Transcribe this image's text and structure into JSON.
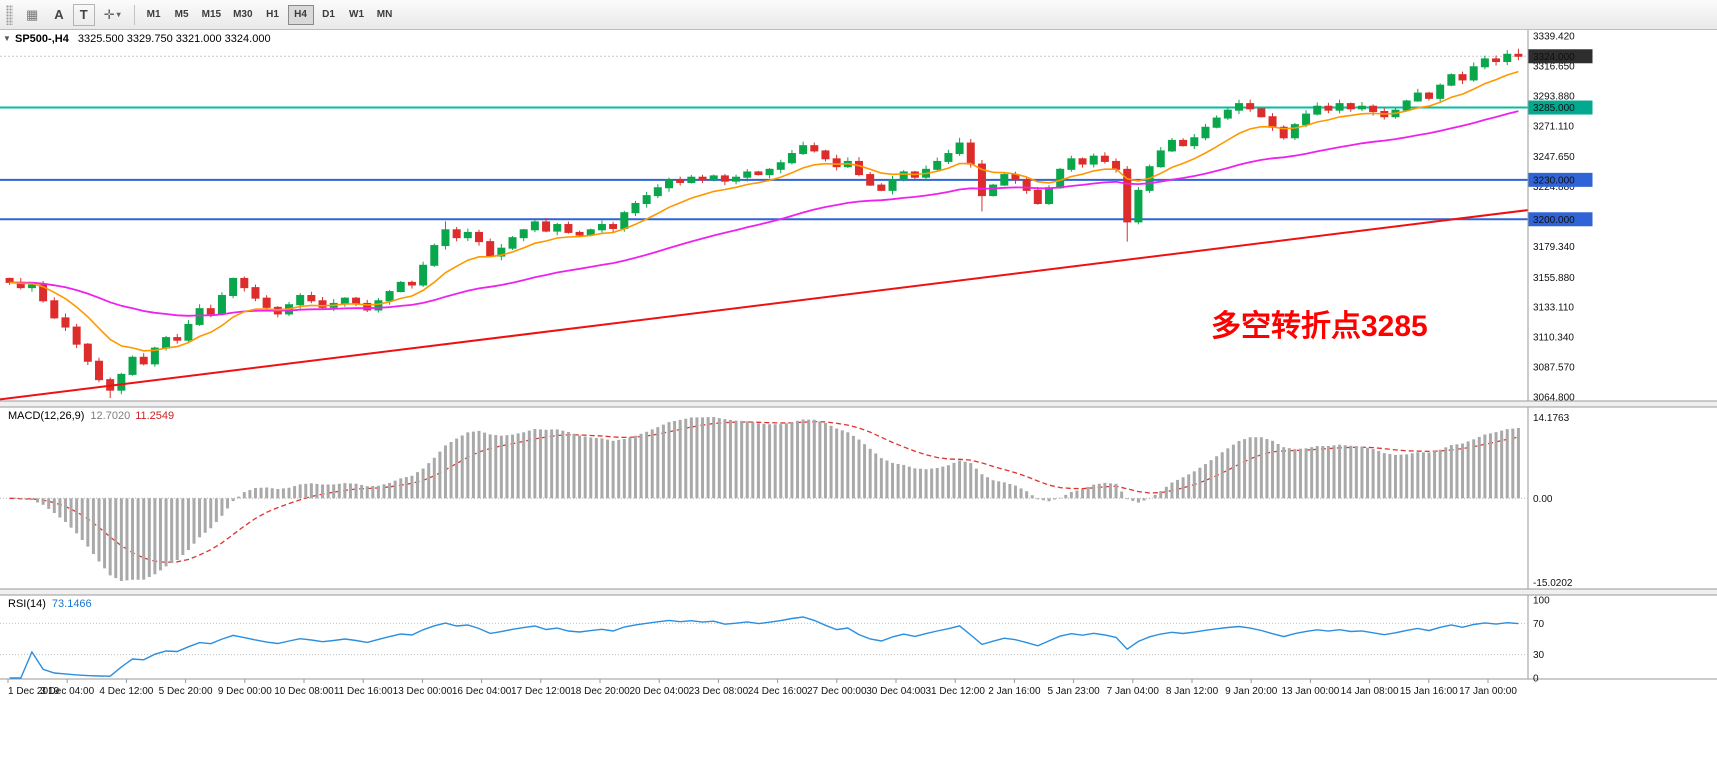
{
  "toolbar": {
    "icons": {
      "grid": "▦",
      "caret": "▾",
      "cursor": "✛",
      "collapse": "▼"
    },
    "tool_a": "A",
    "tool_t": "T",
    "timeframes": [
      "M1",
      "M5",
      "M15",
      "M30",
      "H1",
      "H4",
      "D1",
      "W1",
      "MN"
    ],
    "active_timeframe": "H4"
  },
  "main_chart": {
    "symbol_tf": "SP500-,H4",
    "ohlc_text": "3325.500 3329.750 3321.000 3324.000",
    "annotation": {
      "text": "多空转折点3285",
      "color": "#ff0000"
    },
    "price_min": 3064.8,
    "price_max": 3339.42,
    "price_axis_labels": [
      "3339.420",
      "3316.650",
      "3293.880",
      "3271.110",
      "3247.650",
      "3224.880",
      "3179.340",
      "3155.880",
      "3133.110",
      "3110.340",
      "3087.570",
      "3064.800"
    ],
    "badges": [
      {
        "value": "3324.000",
        "price": 3324.0,
        "color": "#2e2e2e"
      },
      {
        "value": "3285.000",
        "price": 3285.0,
        "color": "#00a98f"
      },
      {
        "value": "3230.000",
        "price": 3230.0,
        "color": "#2f63d6"
      },
      {
        "value": "3200.000",
        "price": 3200.0,
        "color": "#2f63d6"
      }
    ],
    "hlines": [
      {
        "price": 3285.0,
        "color": "#00bfa0",
        "width": 2
      },
      {
        "price": 3230.0,
        "color": "#2f63d6",
        "width": 2
      },
      {
        "price": 3200.0,
        "color": "#2f63d6",
        "width": 2
      }
    ],
    "current_price": 3324.0
  },
  "macd_panel": {
    "label": "MACD(12,26,9)",
    "value_main": "12.7020",
    "value_signal": "11.2549",
    "axis_top": "14.1763",
    "axis_zero": "0.00",
    "axis_bottom": "-15.0202"
  },
  "rsi_panel": {
    "label": "RSI(14)",
    "value": "73.1466",
    "axis_labels": [
      "100",
      "70",
      "30",
      "0"
    ],
    "levels": [
      70,
      30
    ]
  },
  "time_axis": [
    "1 Dec 2019",
    "3 Dec 04:00",
    "4 Dec 12:00",
    "5 Dec 20:00",
    "9 Dec 00:00",
    "10 Dec 08:00",
    "11 Dec 16:00",
    "13 Dec 00:00",
    "16 Dec 04:00",
    "17 Dec 12:00",
    "18 Dec 20:00",
    "20 Dec 04:00",
    "23 Dec 08:00",
    "24 Dec 16:00",
    "27 Dec 00:00",
    "30 Dec 04:00",
    "31 Dec 12:00",
    "2 Jan 16:00",
    "5 Jan 23:00",
    "7 Jan 04:00",
    "8 Jan 12:00",
    "9 Jan 20:00",
    "13 Jan 00:00",
    "14 Jan 08:00",
    "15 Jan 16:00",
    "17 Jan 00:00"
  ],
  "chart_data": {
    "type": "candlestick",
    "symbol": "SP500-",
    "timeframe": "H4",
    "last_bar": {
      "open": 3325.5,
      "high": 3329.75,
      "low": 3321.0,
      "close": 3324.0
    },
    "first_open": 3155,
    "closes": [
      3152,
      3148,
      3150,
      3138,
      3125,
      3118,
      3105,
      3092,
      3078,
      3070,
      3082,
      3095,
      3090,
      3102,
      3110,
      3108,
      3120,
      3132,
      3128,
      3142,
      3155,
      3148,
      3140,
      3133,
      3128,
      3135,
      3142,
      3138,
      3133,
      3136,
      3140,
      3136,
      3131,
      3138,
      3145,
      3152,
      3150,
      3165,
      3180,
      3192,
      3186,
      3190,
      3183,
      3172,
      3178,
      3186,
      3192,
      3198,
      3191,
      3196,
      3190,
      3188,
      3192,
      3196,
      3193,
      3205,
      3212,
      3218,
      3224,
      3230,
      3228,
      3232,
      3230,
      3233,
      3229,
      3232,
      3236,
      3234,
      3238,
      3243,
      3250,
      3256,
      3252,
      3246,
      3240,
      3244,
      3234,
      3226,
      3222,
      3230,
      3236,
      3232,
      3238,
      3244,
      3250,
      3258,
      3242,
      3218,
      3226,
      3234,
      3230,
      3222,
      3212,
      3224,
      3238,
      3246,
      3242,
      3248,
      3244,
      3238,
      3198,
      3222,
      3240,
      3252,
      3260,
      3256,
      3262,
      3270,
      3277,
      3283,
      3288,
      3284,
      3278,
      3270,
      3262,
      3272,
      3280,
      3286,
      3283,
      3288,
      3284,
      3286,
      3282,
      3278,
      3283,
      3290,
      3296,
      3292,
      3302,
      3310,
      3306,
      3316,
      3322,
      3320,
      3325.5,
      3324
    ],
    "low_overrides": {
      "9": 3064,
      "87": 3206,
      "100": 3183,
      "135": 3321.0
    },
    "high_overrides": {
      "39": 3198.5,
      "85": 3262,
      "110": 3291,
      "135": 3329.75
    },
    "up_color": "#0aa64c",
    "down_color": "#dd2c2c",
    "ma_fast": {
      "period": 10,
      "color": "#ff9800"
    },
    "ma_mid": {
      "period": 40,
      "color": "#ee22ee"
    },
    "ma_slow_line": {
      "start_price": 3063,
      "end_price": 3207,
      "color": "#ee1111"
    },
    "macd": {
      "fast": 12,
      "slow": 26,
      "signal": 9,
      "hist_color": "#a9a9a9",
      "signal_color": "#e03030"
    },
    "rsi": {
      "period": 14,
      "color": "#2a8fe0"
    }
  }
}
